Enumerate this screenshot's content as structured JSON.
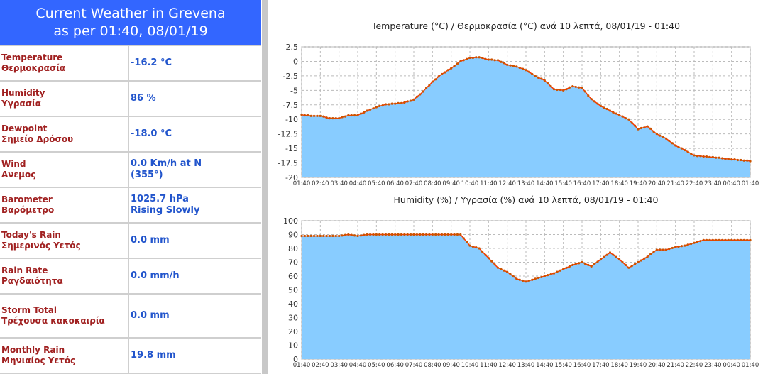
{
  "header": {
    "line1": "Current Weather in Grevena",
    "line2": "as per 01:40, 08/01/19"
  },
  "rows": [
    {
      "label_en": "Temperature",
      "label_gr": "Θερμοκρασία",
      "value": "-16.2 °C",
      "value2": ""
    },
    {
      "label_en": "Humidity",
      "label_gr": "Υγρασία",
      "value": "86 %",
      "value2": ""
    },
    {
      "label_en": "Dewpoint",
      "label_gr": "Σημείο Δρόσου",
      "value": "-18.0 °C",
      "value2": ""
    },
    {
      "label_en": "Wind",
      "label_gr": "Ανεμος",
      "value": "0.0 Km/h at N",
      "value2": "(355°)"
    },
    {
      "label_en": "Barometer",
      "label_gr": "Βαρόμετρο",
      "value": "1025.7 hPa",
      "value2": "Rising Slowly"
    },
    {
      "label_en": "Today's Rain",
      "label_gr": "Σημερινός Υετός",
      "value": "0.0 mm",
      "value2": ""
    },
    {
      "label_en": "Rain Rate",
      "label_gr": "Ραγδαιότητα",
      "value": "0.0 mm/h",
      "value2": ""
    },
    {
      "label_en": "Storm Total",
      "label_gr": "Τρέχουσα κακοκαιρία",
      "value": "0.0 mm",
      "value2": ""
    },
    {
      "label_en": "Monthly Rain",
      "label_gr": "Μηνιαίος Υετός",
      "value": "19.8 mm",
      "value2": ""
    }
  ],
  "colors": {
    "fill": "#88ccff",
    "line": "#ff3300",
    "marker": "#cc5500",
    "grid": "#bbbbbb",
    "header_bg": "#3366ff"
  },
  "chart_data": [
    {
      "type": "area",
      "title": "Temperature (°C) / Θερμοκρασία (°C) ανά 10 λεπτά,  08/01/19 - 01:40",
      "xlabel": "",
      "ylabel": "",
      "x_ticks": [
        "01:40",
        "02:40",
        "03:40",
        "04:40",
        "05:40",
        "06:40",
        "07:40",
        "08:40",
        "09:40",
        "10:40",
        "11:40",
        "12:40",
        "13:40",
        "14:40",
        "15:40",
        "16:40",
        "17:40",
        "18:40",
        "19:40",
        "20:40",
        "21:40",
        "22:40",
        "23:40",
        "00:40",
        "01:40"
      ],
      "y_ticks": [
        "2.5",
        "0",
        "-2.5",
        "-5",
        "-7.5",
        "-10",
        "-12.5",
        "-15",
        "-17.5",
        "-20"
      ],
      "ylim": [
        -20,
        2.5
      ],
      "grid": true,
      "series": [
        {
          "name": "Temperature",
          "anchors": [
            [
              0,
              -9.2
            ],
            [
              1,
              -9.4
            ],
            [
              2,
              -9.4
            ],
            [
              3,
              -9.8
            ],
            [
              4,
              -9.8
            ],
            [
              5,
              -9.3
            ],
            [
              6,
              -9.3
            ],
            [
              7,
              -8.5
            ],
            [
              8,
              -7.9
            ],
            [
              9,
              -7.4
            ],
            [
              10,
              -7.3
            ],
            [
              11,
              -7.1
            ],
            [
              12,
              -6.6
            ],
            [
              13,
              -5.2
            ],
            [
              14,
              -3.5
            ],
            [
              15,
              -2.2
            ],
            [
              16,
              -1.2
            ],
            [
              17,
              0.0
            ],
            [
              18,
              0.6
            ],
            [
              19,
              0.7
            ],
            [
              20,
              0.3
            ],
            [
              21,
              0.2
            ],
            [
              22,
              -0.6
            ],
            [
              23,
              -0.9
            ],
            [
              24,
              -1.5
            ],
            [
              25,
              -2.5
            ],
            [
              26,
              -3.3
            ],
            [
              27,
              -4.8
            ],
            [
              28,
              -5.0
            ],
            [
              29,
              -4.3
            ],
            [
              30,
              -4.6
            ],
            [
              31,
              -6.5
            ],
            [
              32,
              -7.7
            ],
            [
              33,
              -8.5
            ],
            [
              34,
              -9.3
            ],
            [
              35,
              -10.0
            ],
            [
              36,
              -11.7
            ],
            [
              37,
              -11.2
            ],
            [
              38,
              -12.5
            ],
            [
              39,
              -13.3
            ],
            [
              40,
              -14.5
            ],
            [
              41,
              -15.3
            ],
            [
              42,
              -16.2
            ]
          ]
        }
      ]
    },
    {
      "type": "area",
      "title": "Humidity (%) / Υγρασία (%) ανά 10 λεπτά,  08/01/19 - 01:40",
      "xlabel": "",
      "ylabel": "",
      "x_ticks": [
        "01:40",
        "02:40",
        "03:40",
        "04:40",
        "05:40",
        "06:40",
        "07:40",
        "08:40",
        "09:40",
        "10:40",
        "11:40",
        "12:40",
        "13:40",
        "14:40",
        "15:40",
        "16:40",
        "17:40",
        "18:40",
        "19:40",
        "20:40",
        "21:40",
        "22:40",
        "23:40",
        "00:40",
        "01:40"
      ],
      "y_ticks": [
        "100",
        "90",
        "80",
        "70",
        "60",
        "50",
        "40",
        "30",
        "20",
        "10",
        "0"
      ],
      "ylim": [
        0,
        100
      ],
      "grid": true,
      "series": [
        {
          "name": "Humidity",
          "anchors": [
            [
              0,
              89
            ],
            [
              1,
              89
            ],
            [
              2,
              89
            ],
            [
              3,
              89
            ],
            [
              4,
              89
            ],
            [
              5,
              90
            ],
            [
              6,
              89
            ],
            [
              7,
              90
            ],
            [
              8,
              90
            ],
            [
              9,
              90
            ],
            [
              10,
              90
            ],
            [
              11,
              90
            ],
            [
              12,
              90
            ],
            [
              13,
              90
            ],
            [
              14,
              90
            ],
            [
              15,
              90
            ],
            [
              16,
              90
            ],
            [
              17,
              90
            ],
            [
              18,
              82
            ],
            [
              19,
              80
            ],
            [
              20,
              73
            ],
            [
              21,
              66
            ],
            [
              22,
              63
            ],
            [
              23,
              58
            ],
            [
              24,
              56
            ],
            [
              25,
              58
            ],
            [
              26,
              60
            ],
            [
              27,
              62
            ],
            [
              28,
              65
            ],
            [
              29,
              68
            ],
            [
              30,
              70
            ],
            [
              31,
              67
            ],
            [
              32,
              72
            ],
            [
              33,
              77
            ],
            [
              34,
              72
            ],
            [
              35,
              66
            ],
            [
              36,
              70
            ],
            [
              37,
              74
            ],
            [
              38,
              79
            ],
            [
              39,
              79
            ],
            [
              40,
              81
            ],
            [
              41,
              82
            ],
            [
              42,
              84
            ],
            [
              43,
              86
            ],
            [
              44,
              86
            ],
            [
              45,
              86
            ],
            [
              46,
              86
            ],
            [
              47,
              86
            ],
            [
              48,
              86
            ]
          ]
        }
      ]
    }
  ]
}
